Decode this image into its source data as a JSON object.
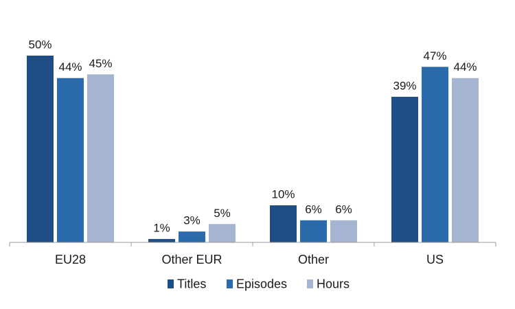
{
  "chart_data": {
    "type": "bar",
    "title": "",
    "xlabel": "",
    "ylabel": "",
    "ylim": [
      0,
      55
    ],
    "grid": false,
    "legend_position": "bottom",
    "categories": [
      "EU28",
      "Other EUR",
      "Other",
      "US"
    ],
    "series": [
      {
        "name": "Titles",
        "values": [
          50,
          1,
          10,
          39
        ],
        "labels": [
          "50%",
          "1%",
          "10%",
          "39%"
        ],
        "color": "#1F4E86"
      },
      {
        "name": "Episodes",
        "values": [
          44,
          3,
          6,
          47
        ],
        "labels": [
          "44%",
          "3%",
          "6%",
          "47%"
        ],
        "color": "#2B6BAC"
      },
      {
        "name": "Hours",
        "values": [
          45,
          5,
          6,
          44
        ],
        "labels": [
          "45%",
          "5%",
          "6%",
          "44%"
        ],
        "color": "#A5B5D1"
      }
    ]
  }
}
